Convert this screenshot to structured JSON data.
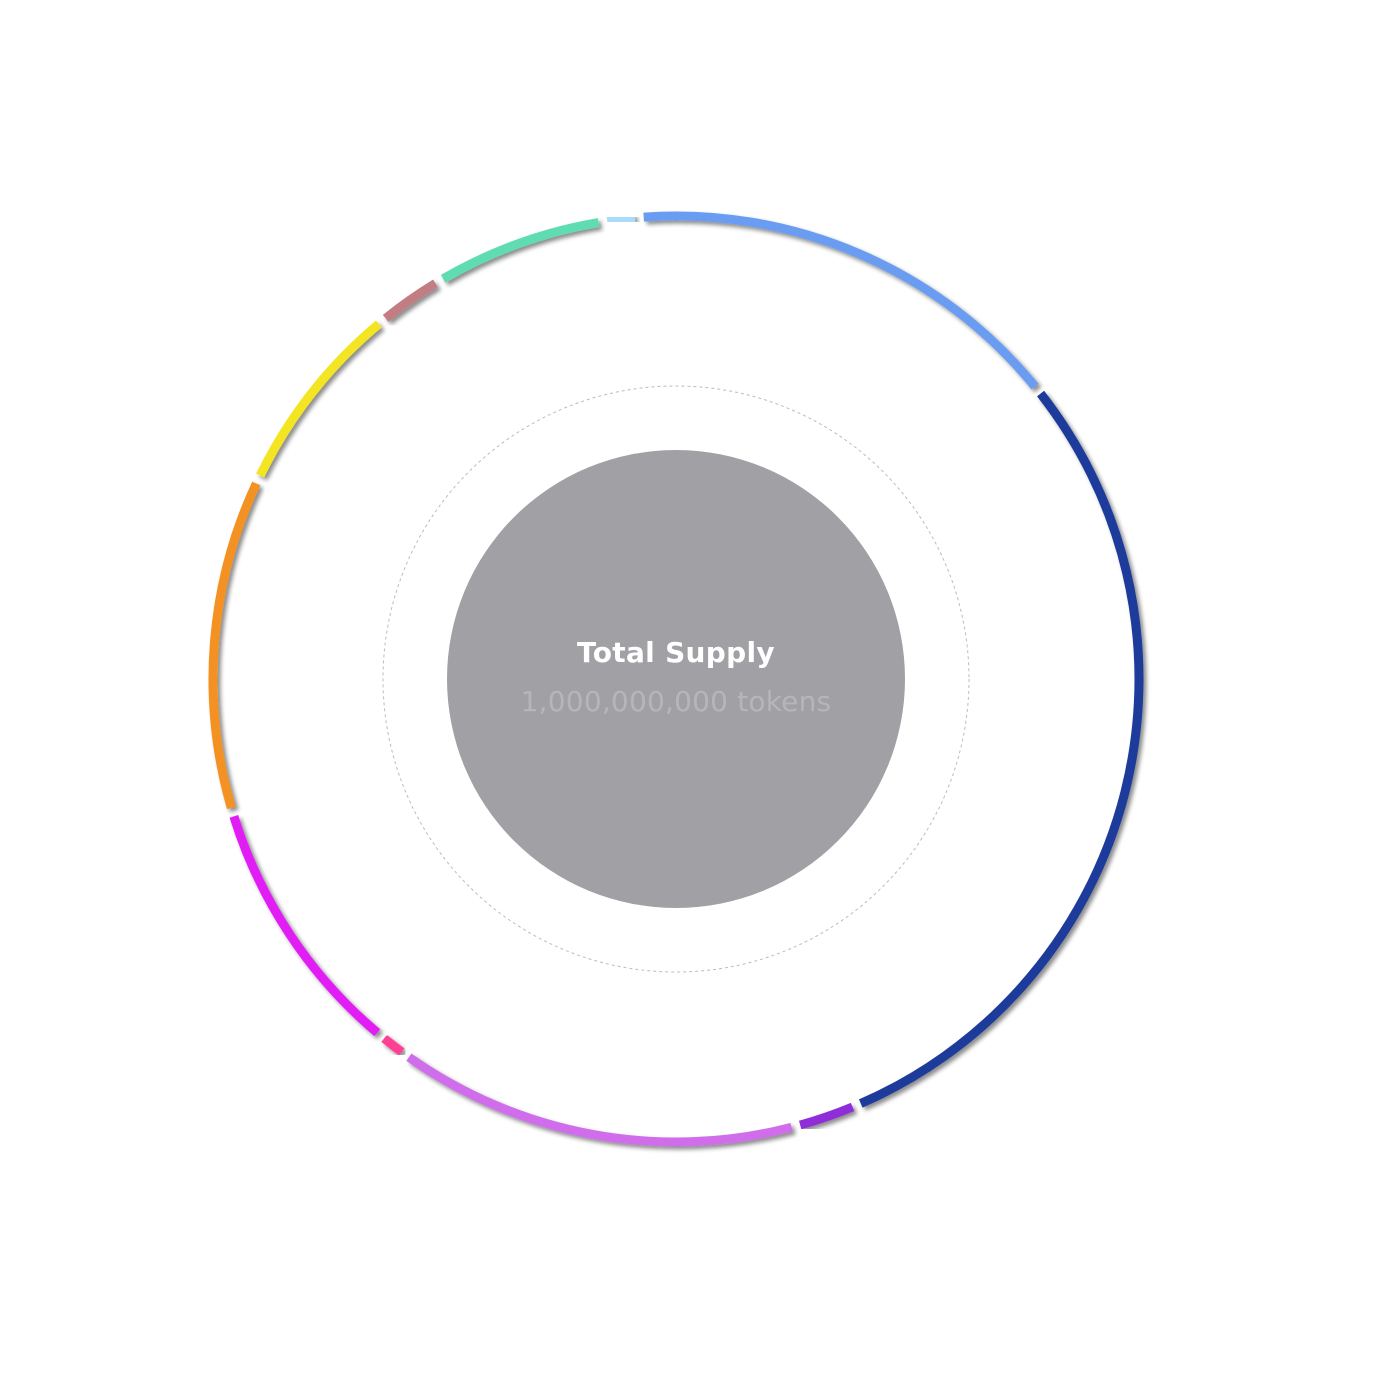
{
  "chart_data": {
    "type": "pie",
    "title": "",
    "center": {
      "title": "Total Supply",
      "value": "1,000,000,000 tokens",
      "fill_color": "#a1a1a5",
      "title_color": "#ffffff",
      "value_color": "#b6b6ba"
    },
    "guide_ring": {
      "color": "#bcbcbc"
    },
    "slices": [
      {
        "value": 16.0,
        "color": "#6b9cf2"
      },
      {
        "value": 30.5,
        "color": "#1e3a9a"
      },
      {
        "value": 2.0,
        "color": "#8f2fd8"
      },
      {
        "value": 14.5,
        "color": "#cf6deb"
      },
      {
        "value": 0.8,
        "color": "#ff3f93"
      },
      {
        "value": 9.5,
        "color": "#e21cf5"
      },
      {
        "value": 12.0,
        "color": "#f39122"
      },
      {
        "value": 7.0,
        "color": "#f4e521"
      },
      {
        "value": 2.2,
        "color": "#c27d82"
      },
      {
        "value": 6.0,
        "color": "#61dcb2"
      },
      {
        "value": 1.0,
        "color": "#a9dcfa"
      }
    ]
  }
}
